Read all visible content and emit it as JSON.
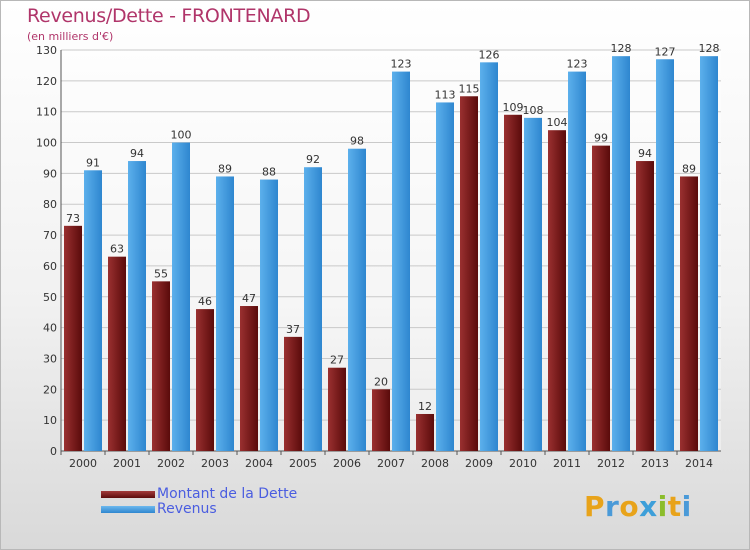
{
  "chart_data": {
    "type": "bar",
    "title": "Revenus/Dette - FRONTENARD",
    "subtitle": "(en milliers d'€)",
    "categories": [
      "2000",
      "2001",
      "2002",
      "2003",
      "2004",
      "2005",
      "2006",
      "2007",
      "2008",
      "2009",
      "2010",
      "2011",
      "2012",
      "2013",
      "2014"
    ],
    "series": [
      {
        "name": "Montant de la Dette",
        "color": "#7a1d1d",
        "values": [
          73,
          63,
          55,
          46,
          47,
          37,
          27,
          20,
          12,
          115,
          109,
          104,
          99,
          94,
          89
        ]
      },
      {
        "name": "Revenus",
        "color": "#3f9be0",
        "values": [
          91,
          94,
          100,
          89,
          88,
          92,
          98,
          123,
          113,
          126,
          108,
          123,
          128,
          127,
          128
        ]
      }
    ],
    "ylim": [
      0,
      130
    ],
    "yticks": [
      0,
      10,
      20,
      30,
      40,
      50,
      60,
      70,
      80,
      90,
      100,
      110,
      120,
      130
    ],
    "grid": true,
    "legend_position": "bottom-left"
  },
  "brand": {
    "letters": [
      "P",
      "r",
      "o",
      "x",
      "i",
      "t",
      "i"
    ],
    "colors": [
      "#e8a31a",
      "#4a9ad8",
      "#e8a31a",
      "#3d9fd9",
      "#8bbd2b",
      "#e8a31a",
      "#4a9ad8"
    ]
  }
}
